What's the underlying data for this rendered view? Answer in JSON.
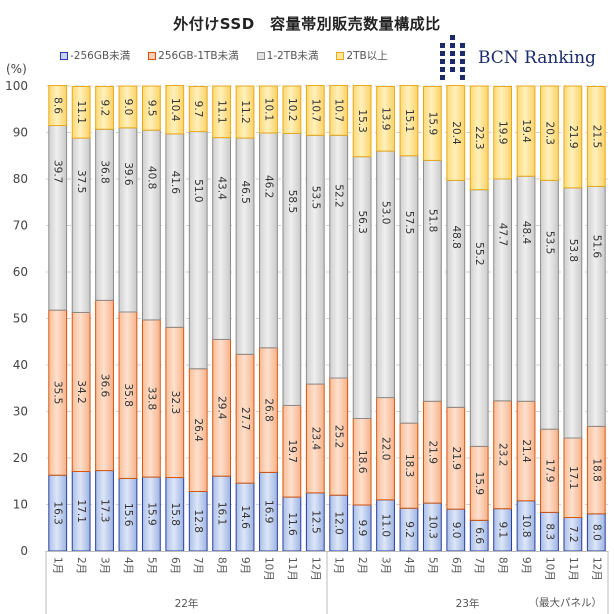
{
  "chart_data": {
    "type": "bar",
    "stacked": true,
    "orientation": "vertical",
    "title": "外付けSSD　容量帯別販売数量構成比",
    "ylabel": "(%)",
    "ylim": [
      0,
      100
    ],
    "yticks": [
      "0",
      "10",
      "20",
      "30",
      "40",
      "50",
      "60",
      "70",
      "80",
      "90",
      "100"
    ],
    "grid": true,
    "legend_position": "top-left",
    "categories": [
      "1月",
      "2月",
      "3月",
      "4月",
      "5月",
      "6月",
      "7月",
      "8月",
      "9月",
      "10月",
      "11月",
      "12月",
      "1月",
      "2月",
      "3月",
      "4月",
      "5月",
      "6月",
      "7月",
      "8月",
      "9月",
      "10月",
      "11月",
      "12月"
    ],
    "groups": [
      {
        "label": "22年",
        "count": 12
      },
      {
        "label": "23年",
        "count": 12
      }
    ],
    "series": [
      {
        "name": "-256GB未満",
        "color": "#2a3f9e",
        "fill": "#c5d3f0",
        "values": [
          16.3,
          17.1,
          17.3,
          15.6,
          15.9,
          15.8,
          12.8,
          16.1,
          14.6,
          16.9,
          11.6,
          12.5,
          12.0,
          9.9,
          11.0,
          9.2,
          10.3,
          9.0,
          6.6,
          9.1,
          10.8,
          8.3,
          7.2,
          8.0
        ],
        "labels": [
          "16.3",
          "17.1",
          "17.3",
          "15.6",
          "15.9",
          "15.8",
          "12.8",
          "16.1",
          "14.6",
          "16.9",
          "11.6",
          "12.5",
          "12.0",
          "9.9",
          "11.0",
          "9.2",
          "10.3",
          "9.0",
          "6.6",
          "9.1",
          "10.8",
          "8.3",
          "7.2",
          "8.0"
        ]
      },
      {
        "name": "256GB-1TB未満",
        "color": "#d4570f",
        "fill": "#fbcfb3",
        "values": [
          35.5,
          34.2,
          36.6,
          35.8,
          33.8,
          32.3,
          26.4,
          29.4,
          27.7,
          26.8,
          19.7,
          23.4,
          25.2,
          18.6,
          22.0,
          18.3,
          21.9,
          21.9,
          15.9,
          23.2,
          21.4,
          17.9,
          17.1,
          18.8
        ],
        "labels": [
          "35.5",
          "34.2",
          "36.6",
          "35.8",
          "33.8",
          "32.3",
          "26.4",
          "29.4",
          "27.7",
          "26.8",
          "19.7",
          "23.4",
          "25.2",
          "18.6",
          "22.0",
          "18.3",
          "21.9",
          "21.9",
          "15.9",
          "23.2",
          "21.4",
          "17.9",
          "17.1",
          "18.8"
        ]
      },
      {
        "name": "1-2TB未満",
        "color": "#8c8c8c",
        "fill": "#e2e2e2",
        "values": [
          39.7,
          37.5,
          36.8,
          39.6,
          40.8,
          41.6,
          51.0,
          43.4,
          46.5,
          46.2,
          58.5,
          53.5,
          52.2,
          56.3,
          53.0,
          57.5,
          51.8,
          48.8,
          55.2,
          47.7,
          48.4,
          53.5,
          53.8,
          51.6
        ],
        "labels": [
          "39.7",
          "37.5",
          "36.8",
          "39.6",
          "40.8",
          "41.6",
          "51.0",
          "43.4",
          "46.5",
          "46.2",
          "58.5",
          "53.5",
          "52.2",
          "56.3",
          "53.0",
          "57.5",
          "51.8",
          "48.8",
          "55.2",
          "47.7",
          "48.4",
          "53.5",
          "53.8",
          "51.6"
        ]
      },
      {
        "name": "2TB以上",
        "color": "#e8a91a",
        "fill": "#fde79a",
        "values": [
          8.6,
          11.1,
          9.2,
          9.0,
          9.5,
          10.4,
          9.7,
          11.1,
          11.2,
          10.1,
          10.2,
          10.7,
          10.7,
          15.3,
          13.9,
          15.1,
          15.9,
          20.4,
          22.3,
          19.9,
          19.4,
          20.3,
          21.9,
          21.5
        ],
        "labels": [
          "8.6",
          "11.1",
          "9.2",
          "9.0",
          "9.5",
          "10.4",
          "9.7",
          "11.1",
          "11.2",
          "10.1",
          "10.2",
          "10.7",
          "10.7",
          "15.3",
          "13.9",
          "15.1",
          "15.9",
          "20.4",
          "22.3",
          "19.9",
          "19.4",
          "20.3",
          "21.9",
          "21.5"
        ]
      }
    ],
    "annotation": "（最大パネル）"
  },
  "branding": {
    "logo_text": "BCN Ranking",
    "logo_color": "#1a2a6c"
  }
}
